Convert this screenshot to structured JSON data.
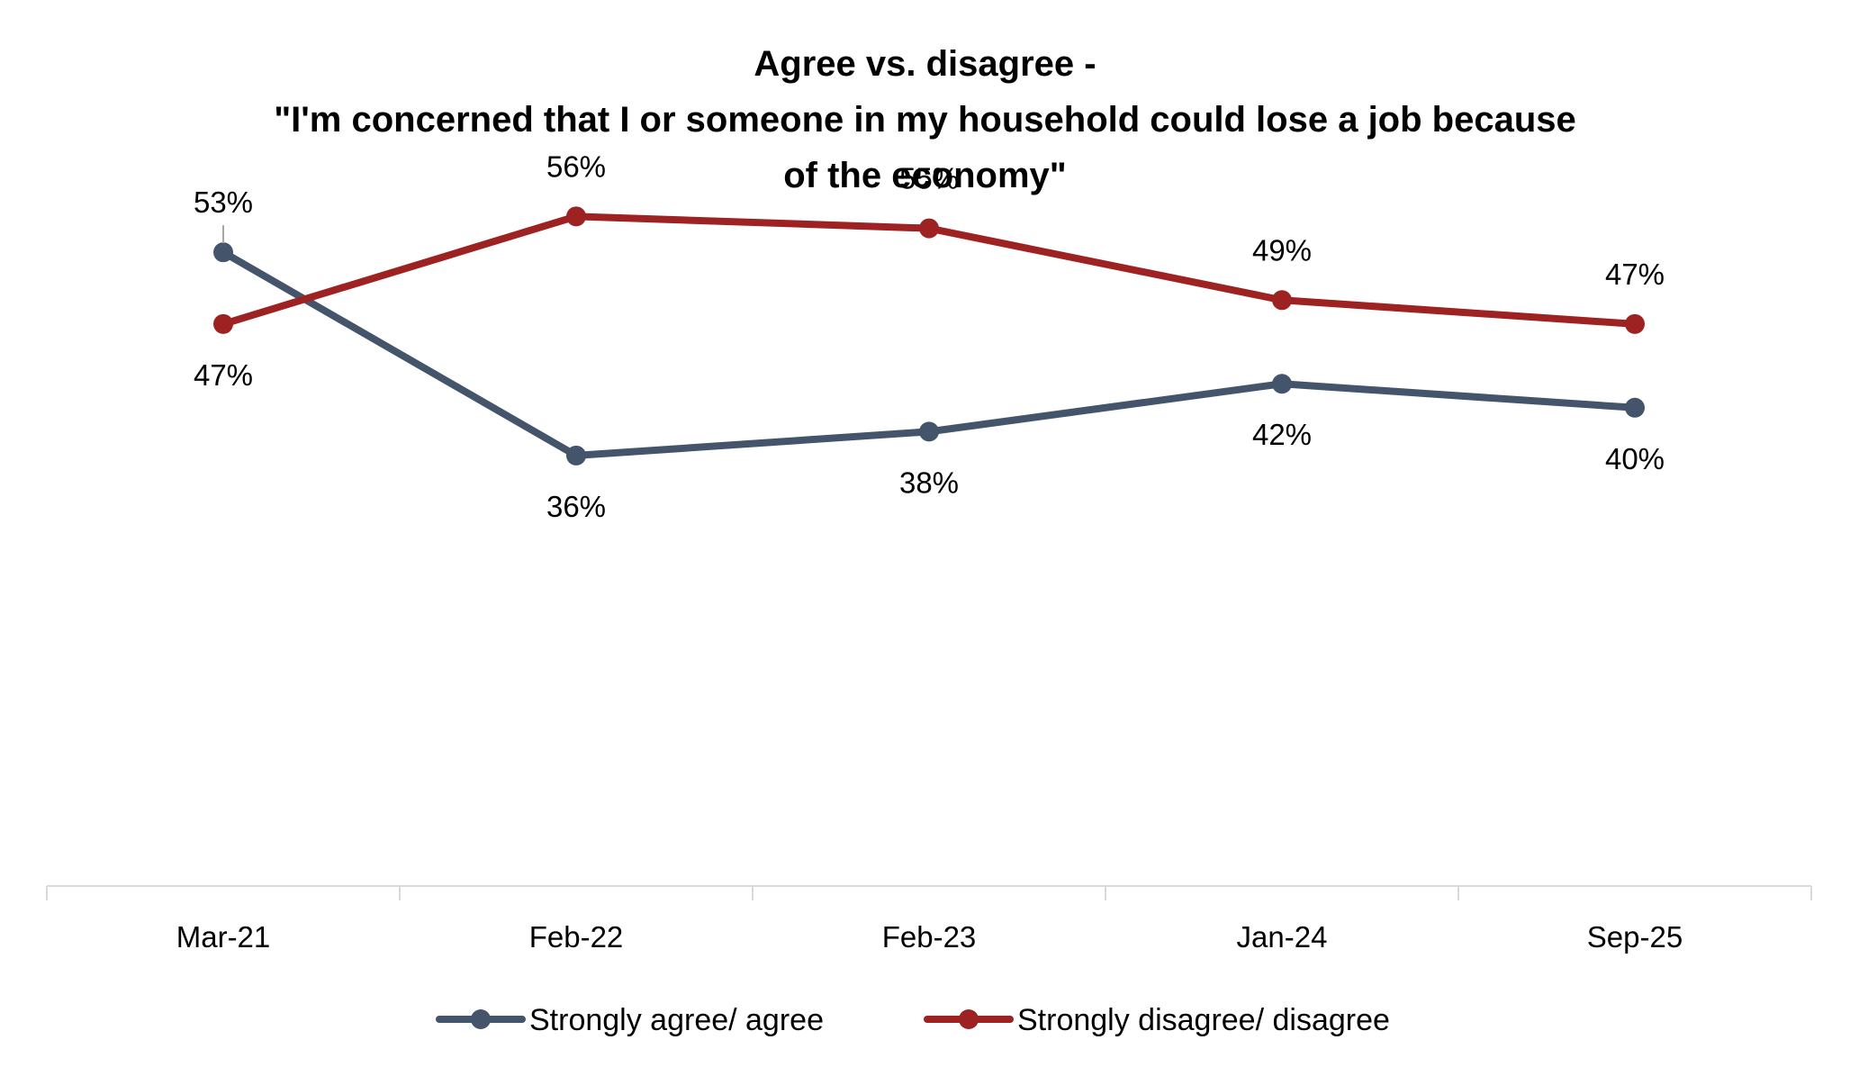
{
  "chart_data": {
    "type": "line",
    "title": [
      "Agree vs. disagree -",
      "\"I'm concerned that I or someone in my household could lose a job because",
      "of the economy\""
    ],
    "categories": [
      "Mar-21",
      "Feb-22",
      "Feb-23",
      "Jan-24",
      "Sep-25"
    ],
    "ylim": [
      0,
      100
    ],
    "grid": false,
    "legend_position": "bottom",
    "series": [
      {
        "name": "Strongly agree/ agree",
        "color": "#44546A",
        "values": [
          53,
          36,
          38,
          42,
          40
        ],
        "labels": [
          "53%",
          "36%",
          "38%",
          "42%",
          "40%"
        ],
        "label_placement": [
          "above",
          "below",
          "below",
          "below",
          "below"
        ]
      },
      {
        "name": "Strongly disagree/ disagree",
        "color": "#9E2222",
        "values": [
          47,
          56,
          55,
          49,
          47
        ],
        "labels": [
          "47%",
          "56%",
          "55%",
          "49%",
          "47%"
        ],
        "label_placement": [
          "below",
          "above",
          "above",
          "above",
          "above"
        ]
      }
    ]
  }
}
